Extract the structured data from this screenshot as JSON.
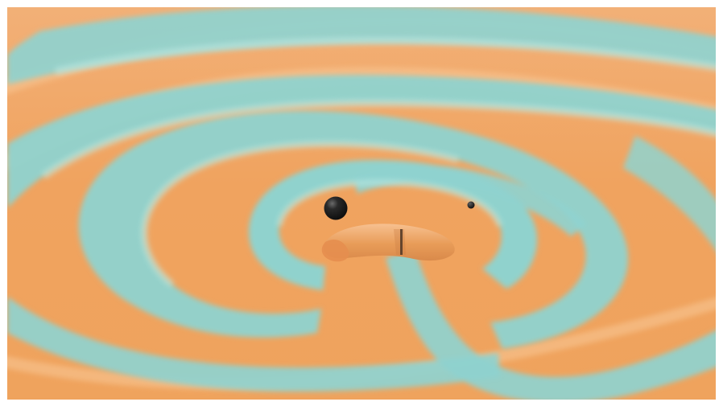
{
  "image": {
    "palette": {
      "orange": "#F0A560",
      "orange_light": "#F6C08A",
      "teal": "#8FD3CF",
      "teal_light": "#B9E6DF",
      "black_hole": "#1b1b1b",
      "border": "#ffffff"
    },
    "objects": [
      "spiral-wave-field",
      "large-black-hole",
      "small-black-hole",
      "warped-center"
    ]
  }
}
